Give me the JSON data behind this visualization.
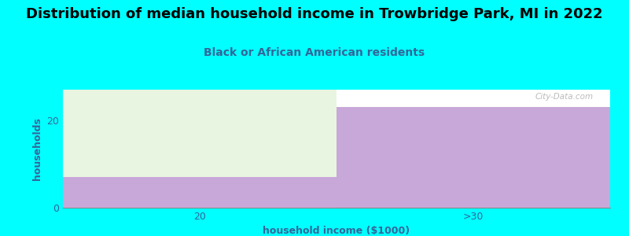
{
  "title": "Distribution of median household income in Trowbridge Park, MI in 2022",
  "subtitle": "Black or African American residents",
  "xlabel": "household income ($1000)",
  "ylabel": "households",
  "background_color": "#00FFFF",
  "plot_bg_color": "#FFFFFF",
  "bar_categories": [
    "20",
    ">30"
  ],
  "bar_values": [
    7,
    23
  ],
  "bar_color": "#C8A8D8",
  "left_bar_top_color": "#E8F5E0",
  "ylim": [
    0,
    27
  ],
  "yticks": [
    0,
    20
  ],
  "title_fontsize": 13,
  "subtitle_fontsize": 10,
  "axis_label_fontsize": 9,
  "tick_fontsize": 9,
  "title_color": "#000000",
  "subtitle_color": "#336699",
  "axis_label_color": "#336699",
  "tick_color": "#336699",
  "watermark": "City-Data.com"
}
